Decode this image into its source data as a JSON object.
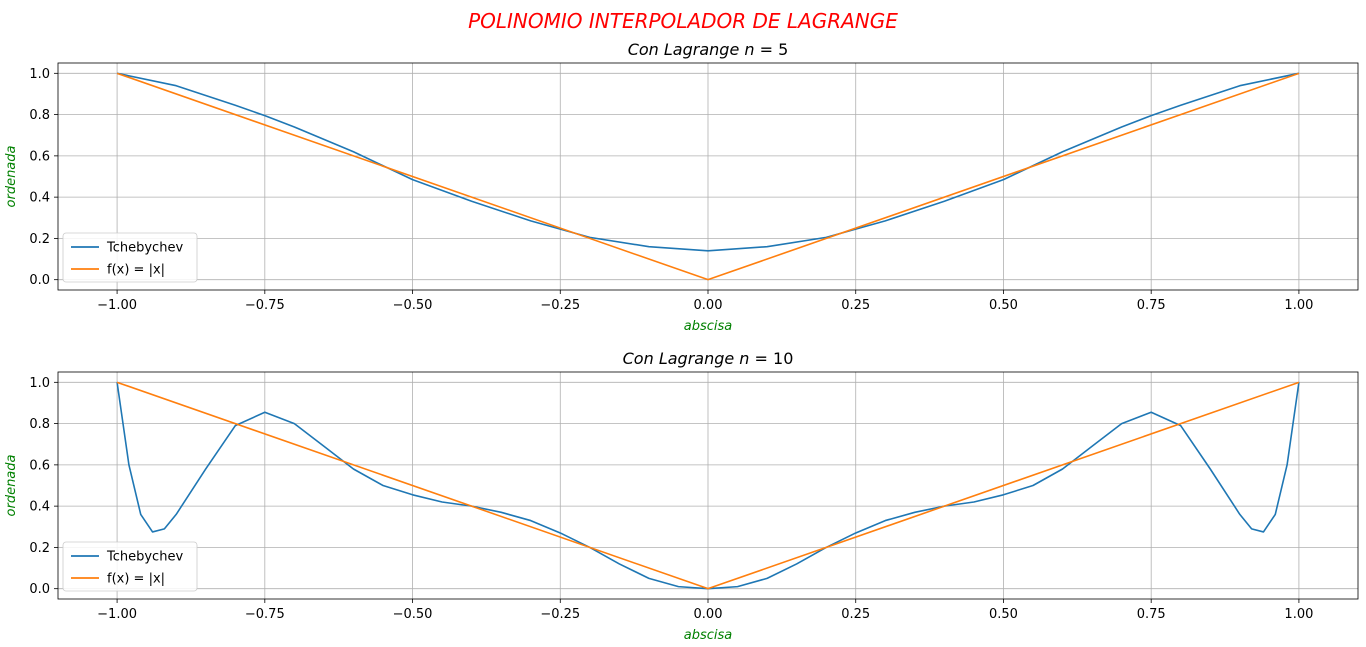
{
  "figure": {
    "suptitle": "POLINOMIO INTERPOLADOR DE LAGRANGE",
    "suptitle_color": "#ff0000",
    "label_color": "#008000"
  },
  "chart_data": [
    {
      "type": "line",
      "title_prefix": "Con Lagrange ",
      "title_var": "n",
      "title_eq": " = ",
      "title_n": "5",
      "xlabel": "abscisa",
      "ylabel": "ordenada",
      "xlim": [
        -1.1,
        1.1
      ],
      "ylim": [
        -0.05,
        1.05
      ],
      "xticks": [
        -1.0,
        -0.75,
        -0.5,
        -0.25,
        0.0,
        0.25,
        0.5,
        0.75,
        1.0
      ],
      "xtick_labels": [
        "−1.00",
        "−0.75",
        "−0.50",
        "−0.25",
        "0.00",
        "0.25",
        "0.50",
        "0.75",
        "1.00"
      ],
      "yticks": [
        0.0,
        0.2,
        0.4,
        0.6,
        0.8,
        1.0
      ],
      "ytick_labels": [
        "0.0",
        "0.2",
        "0.4",
        "0.6",
        "0.8",
        "1.0"
      ],
      "grid": true,
      "legend_position": "lower-left",
      "series": [
        {
          "name": "Tchebychev",
          "color": "#1f77b4",
          "x": [
            -1.0,
            -0.9,
            -0.8,
            -0.75,
            -0.7,
            -0.6,
            -0.5,
            -0.4,
            -0.3,
            -0.2,
            -0.1,
            0.0,
            0.1,
            0.2,
            0.3,
            0.4,
            0.5,
            0.6,
            0.7,
            0.75,
            0.8,
            0.9,
            1.0
          ],
          "y": [
            1.0,
            0.94,
            0.845,
            0.795,
            0.74,
            0.62,
            0.485,
            0.38,
            0.285,
            0.205,
            0.16,
            0.14,
            0.16,
            0.205,
            0.285,
            0.38,
            0.485,
            0.62,
            0.74,
            0.795,
            0.845,
            0.94,
            1.0
          ]
        },
        {
          "name": "f(x) = |x|",
          "color": "#ff7f0e",
          "x": [
            -1.0,
            0.0,
            1.0
          ],
          "y": [
            1.0,
            0.0,
            1.0
          ]
        }
      ]
    },
    {
      "type": "line",
      "title_prefix": "Con Lagrange ",
      "title_var": "n",
      "title_eq": " = ",
      "title_n": "10",
      "xlabel": "abscisa",
      "ylabel": "ordenada",
      "xlim": [
        -1.1,
        1.1
      ],
      "ylim": [
        -0.05,
        1.05
      ],
      "xticks": [
        -1.0,
        -0.75,
        -0.5,
        -0.25,
        0.0,
        0.25,
        0.5,
        0.75,
        1.0
      ],
      "xtick_labels": [
        "−1.00",
        "−0.75",
        "−0.50",
        "−0.25",
        "0.00",
        "0.25",
        "0.50",
        "0.75",
        "1.00"
      ],
      "yticks": [
        0.0,
        0.2,
        0.4,
        0.6,
        0.8,
        1.0
      ],
      "ytick_labels": [
        "0.0",
        "0.2",
        "0.4",
        "0.6",
        "0.8",
        "1.0"
      ],
      "grid": true,
      "legend_position": "lower-left",
      "series": [
        {
          "name": "Tchebychev",
          "color": "#1f77b4",
          "x": [
            -1.0,
            -0.98,
            -0.96,
            -0.94,
            -0.92,
            -0.9,
            -0.85,
            -0.8,
            -0.75,
            -0.7,
            -0.65,
            -0.6,
            -0.55,
            -0.5,
            -0.45,
            -0.4,
            -0.35,
            -0.3,
            -0.25,
            -0.2,
            -0.15,
            -0.1,
            -0.05,
            0.0,
            0.05,
            0.1,
            0.15,
            0.2,
            0.25,
            0.3,
            0.35,
            0.4,
            0.45,
            0.5,
            0.55,
            0.6,
            0.65,
            0.7,
            0.75,
            0.8,
            0.85,
            0.9,
            0.92,
            0.94,
            0.96,
            0.98,
            1.0
          ],
          "y": [
            1.0,
            0.6,
            0.36,
            0.275,
            0.29,
            0.36,
            0.58,
            0.79,
            0.855,
            0.8,
            0.69,
            0.58,
            0.5,
            0.455,
            0.42,
            0.4,
            0.37,
            0.33,
            0.27,
            0.2,
            0.12,
            0.05,
            0.01,
            0.0,
            0.01,
            0.05,
            0.12,
            0.2,
            0.27,
            0.33,
            0.37,
            0.4,
            0.42,
            0.455,
            0.5,
            0.58,
            0.69,
            0.8,
            0.855,
            0.79,
            0.58,
            0.36,
            0.29,
            0.275,
            0.36,
            0.6,
            1.0
          ]
        },
        {
          "name": "f(x) = |x|",
          "color": "#ff7f0e",
          "x": [
            -1.0,
            0.0,
            1.0
          ],
          "y": [
            1.0,
            0.0,
            1.0
          ]
        }
      ]
    }
  ]
}
